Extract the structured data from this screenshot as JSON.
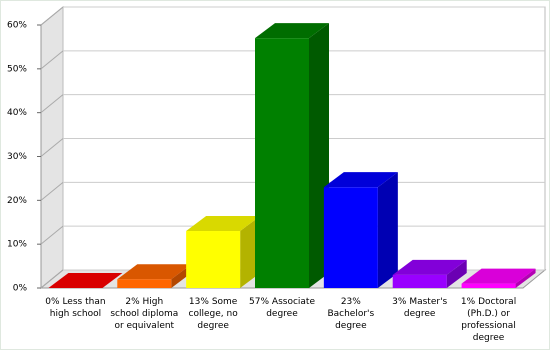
{
  "chart_data": {
    "type": "bar3d",
    "categories": [
      "Less than high school",
      "High school diploma or equivalent",
      "Some college, no degree",
      "Associate degree",
      "Bachelor's degree",
      "Master's degree",
      "Doctoral (Ph.D.) or professional degree"
    ],
    "values": [
      0,
      2,
      13,
      57,
      23,
      3,
      1
    ],
    "value_labels": [
      "0%",
      "2%",
      "13%",
      "57%",
      "23%",
      "3%",
      "1%"
    ],
    "colors": [
      "#ff0000",
      "#ff6600",
      "#ffff00",
      "#008000",
      "#0000ff",
      "#9900ff",
      "#ff00ff"
    ],
    "ylim": [
      0,
      60
    ],
    "yticks": [
      {
        "value": 0,
        "label": "0%"
      },
      {
        "value": 10,
        "label": "10%"
      },
      {
        "value": 20,
        "label": "20%"
      },
      {
        "value": 30,
        "label": "30%"
      },
      {
        "value": 40,
        "label": "40%"
      },
      {
        "value": 50,
        "label": "50%"
      },
      {
        "value": 60,
        "label": "60%"
      }
    ],
    "grid": true
  }
}
